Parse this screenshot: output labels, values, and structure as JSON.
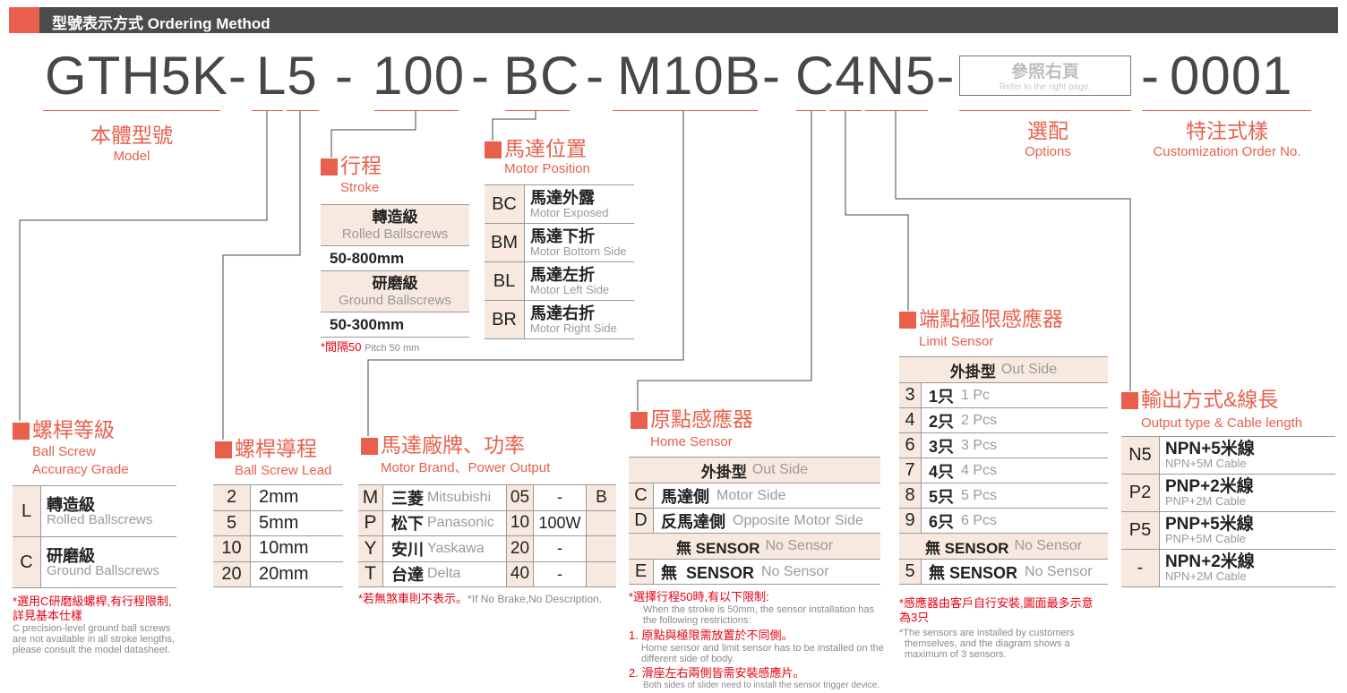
{
  "header": {
    "title": "型號表示方式 Ordering Method"
  },
  "code": {
    "model": "GTH5K-",
    "grade_lead": "L5",
    "d1": "-",
    "stroke": "100",
    "d2": "-",
    "position": "BC",
    "d3": "-",
    "motor": "M10B",
    "d4": "-",
    "sensors": "C4N5-",
    "options_zh": "參照右頁",
    "options_en": "Refer to the right page.",
    "d5": "-",
    "custom": "0001"
  },
  "labels": {
    "model": {
      "zh": "本體型號",
      "en": "Model"
    },
    "options": {
      "zh": "選配",
      "en": "Options"
    },
    "custom": {
      "zh": "特注式樣",
      "en": "Customization Order No."
    }
  },
  "sections": {
    "stroke": {
      "zh": "行程",
      "en": "Stroke"
    },
    "position": {
      "zh": "馬達位置",
      "en": "Motor Position"
    },
    "grade": {
      "zh": "螺桿等級",
      "en": "Ball Screw",
      "en2": "Accuracy Grade"
    },
    "lead": {
      "zh": "螺桿導程",
      "en": "Ball Screw Lead"
    },
    "motor": {
      "zh": "馬達廠牌、功率",
      "en": "Motor Brand、Power Output"
    },
    "home": {
      "zh": "原點感應器",
      "en": "Home Sensor"
    },
    "limit": {
      "zh": "端點極限感應器",
      "en": "Limit Sensor"
    },
    "output": {
      "zh": "輸出方式&線長",
      "en": "Output type & Cable length"
    }
  },
  "tables": {
    "stroke": [
      {
        "bg": true,
        "zh": "轉造級",
        "en": "Rolled Ballscrews"
      },
      {
        "bg": false,
        "val": "50-800mm"
      },
      {
        "bg": true,
        "zh": "研磨級",
        "en": "Ground Ballscrews"
      },
      {
        "bg": false,
        "val": "50-300mm"
      }
    ],
    "position": [
      {
        "k": "BC",
        "zh": "馬達外露",
        "en": "Motor Exposed"
      },
      {
        "k": "BM",
        "zh": "馬達下折",
        "en": "Motor Bottom Side"
      },
      {
        "k": "BL",
        "zh": "馬達左折",
        "en": "Motor Left Side"
      },
      {
        "k": "BR",
        "zh": "馬達右折",
        "en": "Motor Right Side"
      }
    ],
    "grade": [
      {
        "k": "L",
        "zh": "轉造級",
        "en": "Rolled Ballscrews"
      },
      {
        "k": "C",
        "zh": "研磨級",
        "en": "Ground Ballscrews"
      }
    ],
    "lead": [
      {
        "k": "2",
        "v": "2mm"
      },
      {
        "k": "5",
        "v": "5mm"
      },
      {
        "k": "10",
        "v": "10mm"
      },
      {
        "k": "20",
        "v": "20mm"
      }
    ],
    "motor": [
      {
        "k": "M",
        "zh": "三菱",
        "en": "Mitsubishi",
        "c": "05",
        "p": "-",
        "b": "B"
      },
      {
        "k": "P",
        "zh": "松下",
        "en": "Panasonic",
        "c": "10",
        "p": "100W",
        "b": ""
      },
      {
        "k": "Y",
        "zh": "安川",
        "en": "Yaskawa",
        "c": "20",
        "p": "-",
        "b": ""
      },
      {
        "k": "T",
        "zh": "台達",
        "en": "Delta",
        "c": "40",
        "p": "-",
        "b": ""
      }
    ],
    "home": [
      {
        "hdr": true,
        "zh": "外掛型",
        "en": "Out Side"
      },
      {
        "k": "C",
        "zh": "馬達側",
        "en": "Motor Side"
      },
      {
        "k": "D",
        "zh": "反馬達側",
        "en": "Opposite Motor Side"
      },
      {
        "hdr": true,
        "zh": "無 SENSOR",
        "en": "No Sensor"
      },
      {
        "k": "E",
        "zh": "無  SENSOR",
        "en": "No Sensor"
      }
    ],
    "limit": [
      {
        "hdr": true,
        "zh": "外掛型",
        "en": "Out Side"
      },
      {
        "k": "3",
        "zh": "1只",
        "en": "1 Pc"
      },
      {
        "k": "4",
        "zh": "2只",
        "en": "2 Pcs"
      },
      {
        "k": "6",
        "zh": "3只",
        "en": "3 Pcs"
      },
      {
        "k": "7",
        "zh": "4只",
        "en": "4 Pcs"
      },
      {
        "k": "8",
        "zh": "5只",
        "en": "5 Pcs"
      },
      {
        "k": "9",
        "zh": "6只",
        "en": "6 Pcs"
      },
      {
        "hdr": true,
        "zh": "無 SENSOR",
        "en": "No Sensor"
      },
      {
        "k": "5",
        "zh": "無 SENSOR",
        "en": "No Sensor"
      }
    ],
    "output": [
      {
        "k": "N5",
        "zh": "NPN+5米線",
        "en": "NPN+5M Cable"
      },
      {
        "k": "P2",
        "zh": "PNP+2米線",
        "en": "PNP+2M Cable"
      },
      {
        "k": "P5",
        "zh": "PNP+5米線",
        "en": "PNP+5M Cable"
      },
      {
        "k": "-",
        "zh": "NPN+2米線",
        "en": "NPN+2M Cable"
      }
    ]
  },
  "notes": {
    "stroke": {
      "red": "*間隔50",
      "gray": "Pitch 50 mm"
    },
    "grade": {
      "red1": "*選用C研磨級螺桿,有行程限制,",
      "red2": "詳見基本仕樣",
      "g1": "C precision-level ground ball screws",
      "g2": "are not available in all stroke lengths,",
      "g3": "please consult the model datasheet."
    },
    "motor": {
      "red": "*若無煞車則不表示。",
      "gray": "*If No Brake,No Description."
    },
    "home": {
      "r0": "*選擇行程50時,有以下限制:",
      "g0a": "When the stroke is 50mm, the sensor installation has",
      "g0b": "the following restrictions:",
      "r1": "1. 原點與極限需放置於不同側。",
      "g1a": "Home sensor and limit sensor has to be installed on the",
      "g1b": "different side of body.",
      "r2": "2. 滑座左右兩側皆需安裝感應片。",
      "g2": "Both sides of slider need to install the sensor trigger device."
    },
    "limit": {
      "r1": "*感應器由客戶自行安裝,圖面最多示意",
      "r2": "為3只",
      "g1": "*The sensors are installed by customers",
      "g2": "themselves, and the diagram shows a",
      "g3": "maximum of 3 sensors."
    }
  },
  "colors": {
    "accent": "#e8604c",
    "header": "#4b4b4b",
    "cell_bg": "#f7e9df",
    "note_red": "#e60012"
  }
}
